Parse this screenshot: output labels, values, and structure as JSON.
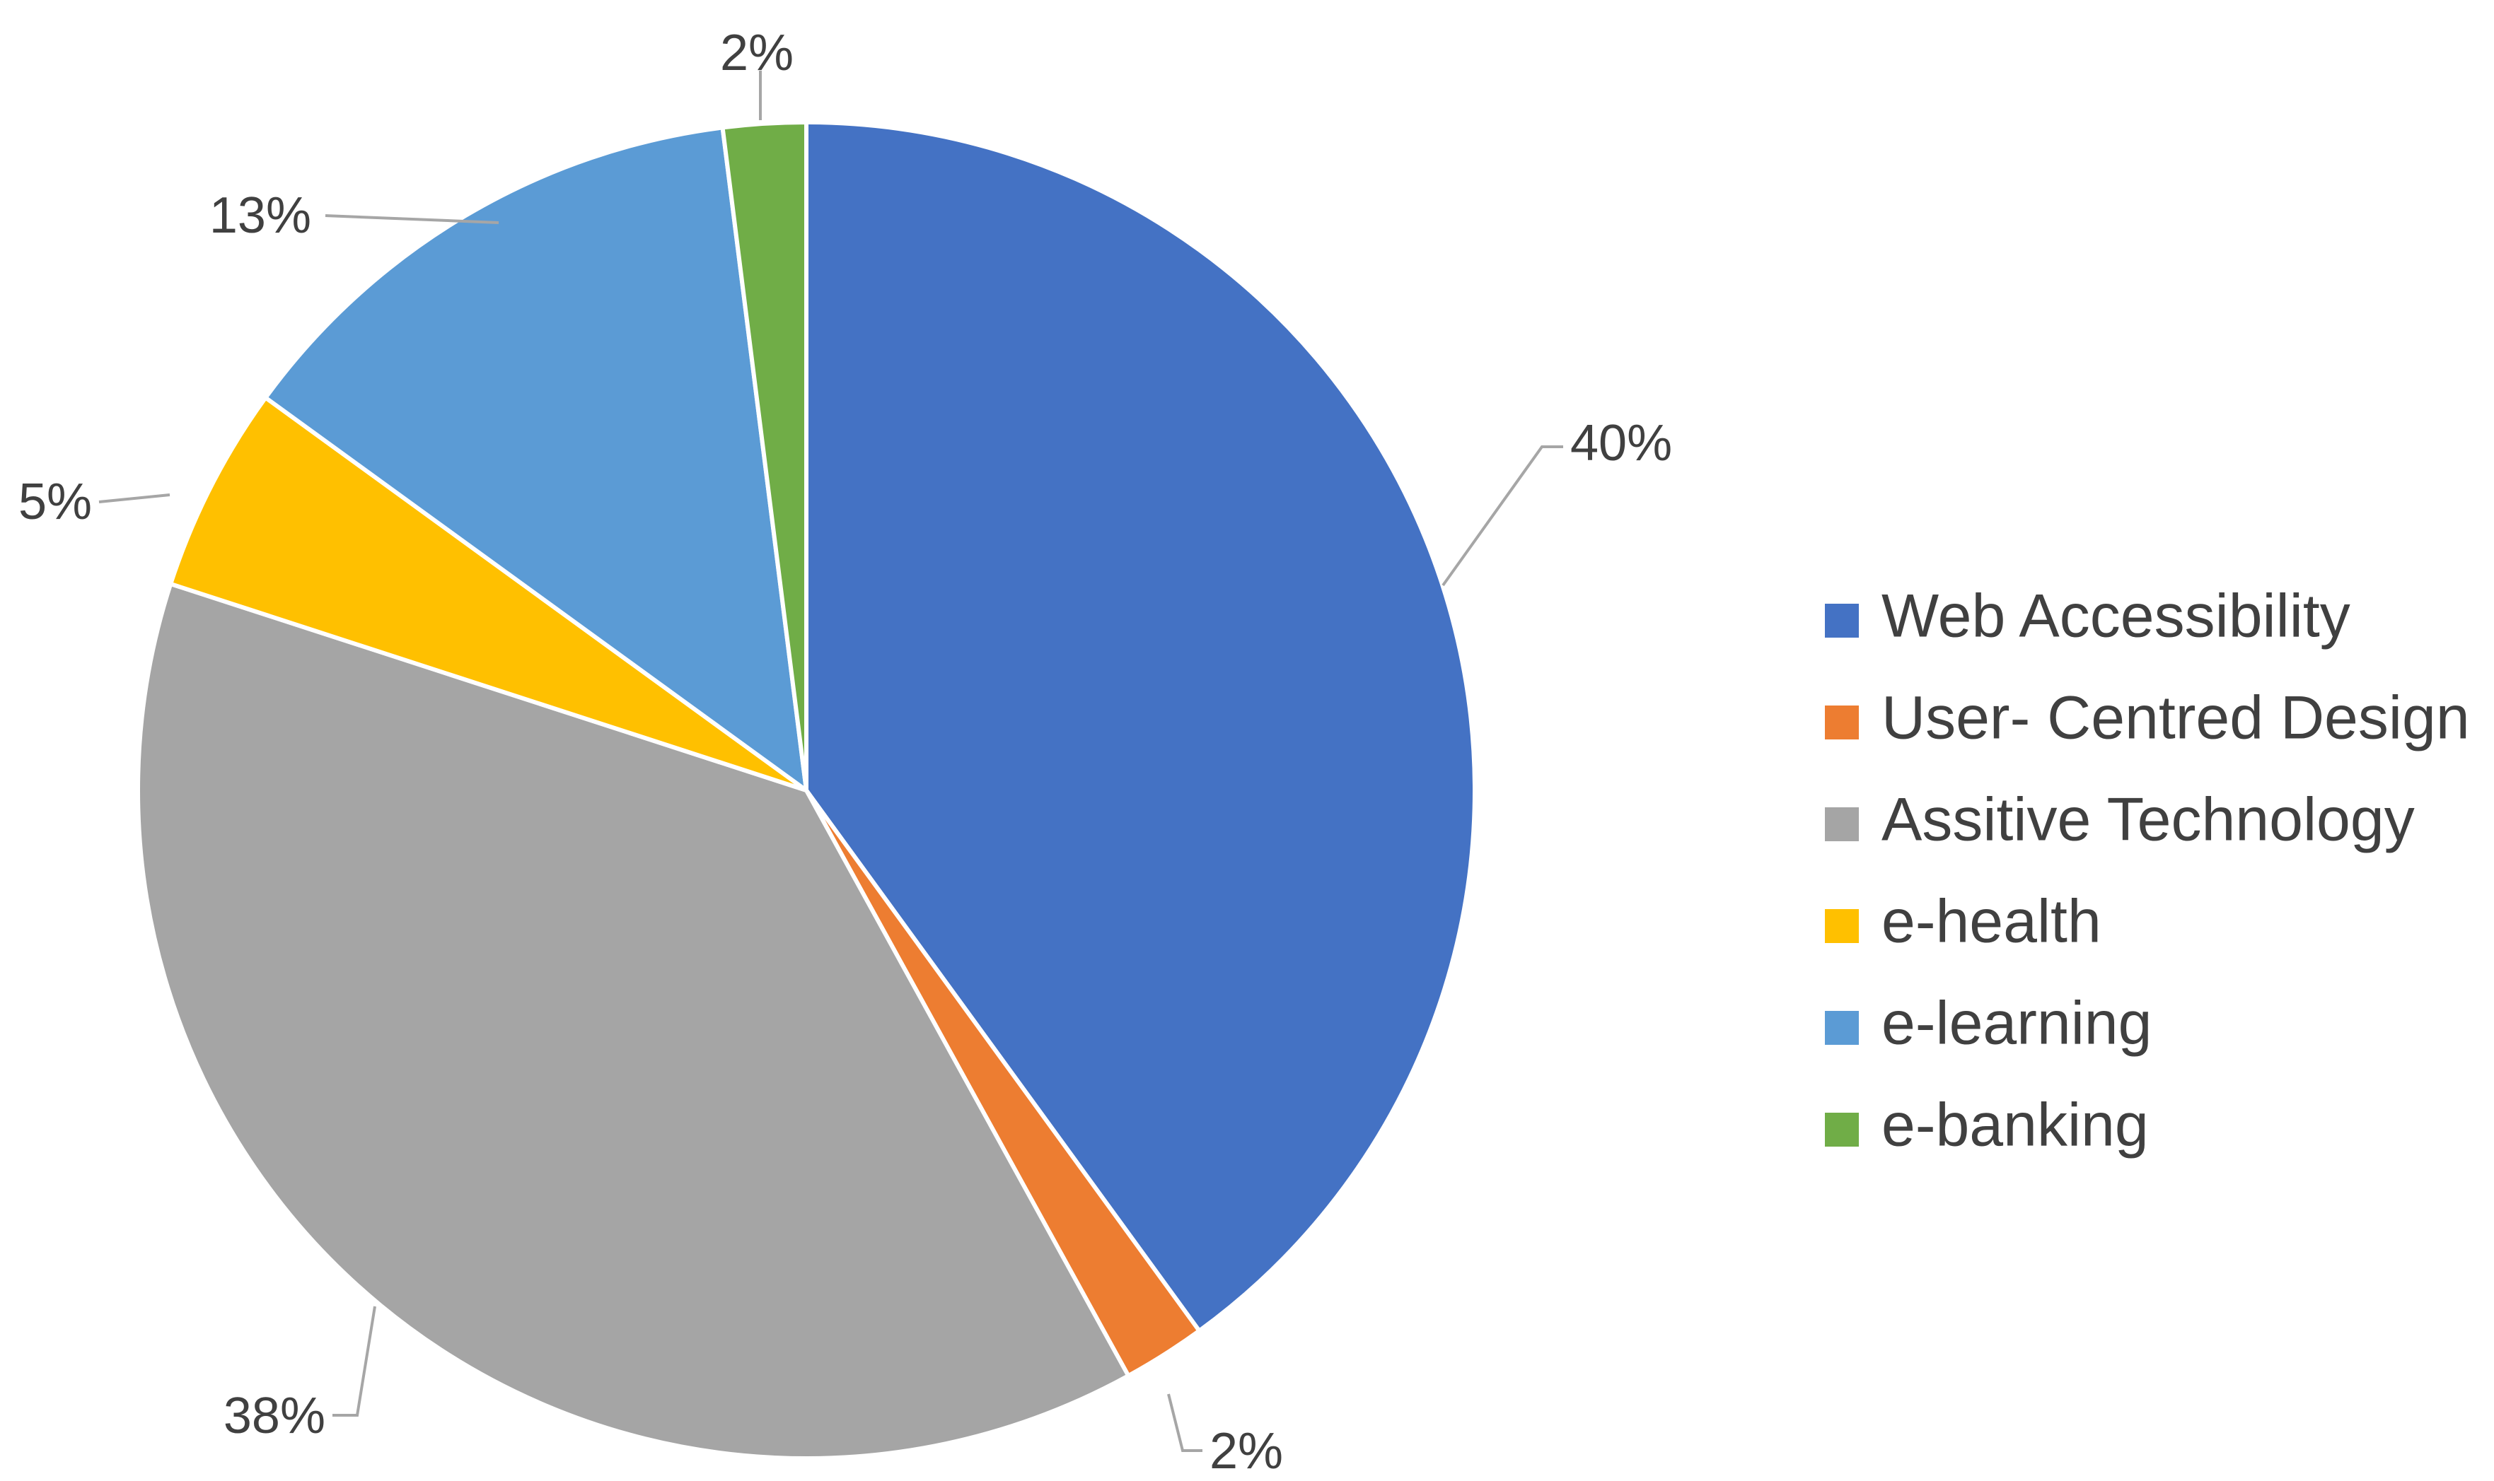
{
  "chart_data": {
    "type": "pie",
    "title": "",
    "legend_position": "right",
    "start_angle_deg": 0,
    "direction": "clockwise",
    "slices": [
      {
        "name": "Web Accessibility",
        "value": 40,
        "label": "40%",
        "color": "#4472C4"
      },
      {
        "name": "User- Centred Design",
        "value": 2,
        "label": "2%",
        "color": "#ED7D31"
      },
      {
        "name": "Assitive Technology",
        "value": 38,
        "label": "38%",
        "color": "#A5A5A5"
      },
      {
        "name": "e-health",
        "value": 5,
        "label": "5%",
        "color": "#FFC000"
      },
      {
        "name": "e-learning",
        "value": 13,
        "label": "13%",
        "color": "#5B9BD5"
      },
      {
        "name": "e-banking",
        "value": 2,
        "label": "2%",
        "color": "#70AD47"
      }
    ]
  }
}
